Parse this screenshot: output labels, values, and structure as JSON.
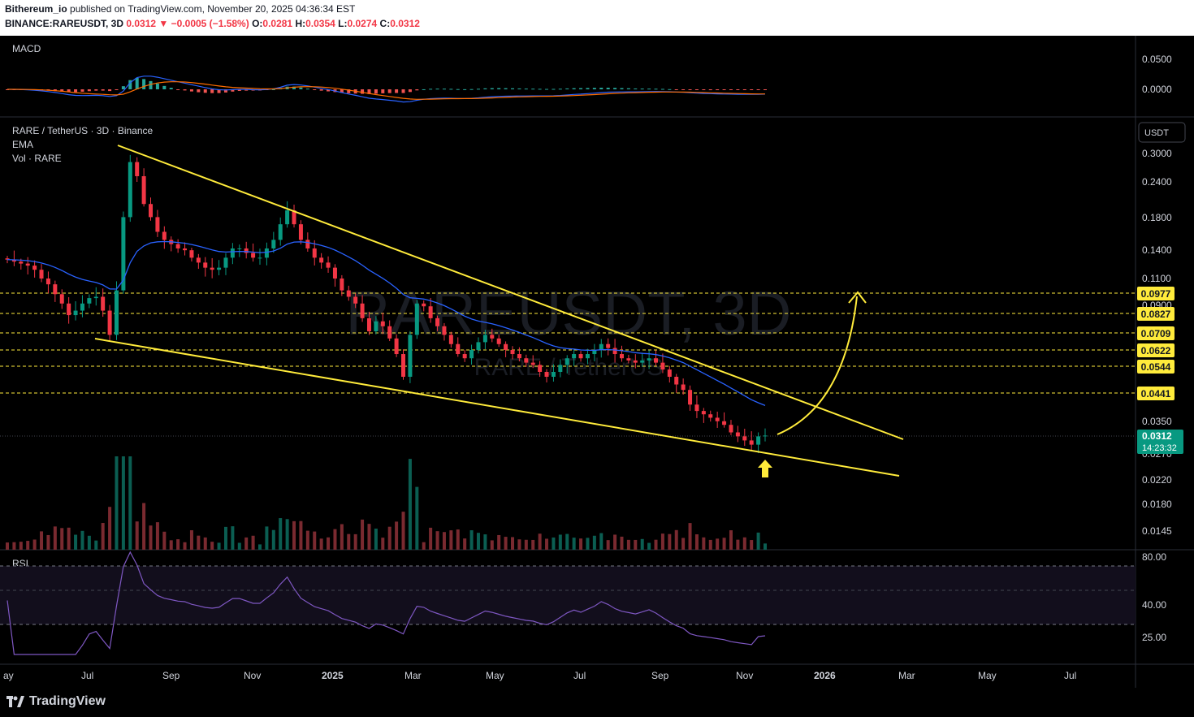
{
  "header": {
    "publisher": "Bithereum_io",
    "published_text": "published on TradingView.com, November 20, 2025 04:36:34 EST",
    "symbol": "BINANCE:RAREUSDT, 3D",
    "last": "0.0312",
    "change": "−0.0005 (−1.58%)",
    "o_label": "O:",
    "o": "0.0281",
    "h_label": "H:",
    "h": "0.0354",
    "l_label": "L:",
    "l": "0.0274",
    "c_label": "C:",
    "c": "0.0312"
  },
  "colors": {
    "up": "#089981",
    "down": "#f23645",
    "trendline": "#ffeb3b",
    "ema": "#2962ff",
    "rsi": "#7e57c2",
    "macd_signal": "#ff6d00"
  },
  "panes": {
    "macd_label": "MACD",
    "price_legend": [
      "RARE / TetherUS · 3D · Binance",
      "EMA",
      "Vol · RARE"
    ],
    "rsi_label": "RSI",
    "currency": "USDT",
    "watermark": "RAREUSDT, 3D",
    "watermark_sub": "RARE / TetherUS"
  },
  "chart_data": {
    "type": "candlestick",
    "symbol": "RAREUSDT",
    "timeframe": "3D",
    "scale": "log",
    "x_axis_labels": [
      "ay",
      "Jul",
      "Sep",
      "Nov",
      "2025",
      "Mar",
      "May",
      "Jul",
      "Sep",
      "Nov",
      "2026",
      "Mar",
      "May",
      "Jul"
    ],
    "price_ticks": [
      "0.3000",
      "0.2400",
      "0.1800",
      "0.1400",
      "0.1100",
      "0.0900",
      "0.0350",
      "0.0270",
      "0.0220",
      "0.0180",
      "0.0145"
    ],
    "support_resistance_levels": [
      "0.0977",
      "0.0827",
      "0.0709",
      "0.0622",
      "0.0544",
      "0.0441"
    ],
    "last_price": "0.0312",
    "countdown": "14:23:32",
    "macd_ticks": [
      "0.0500",
      "0.0000"
    ],
    "rsi_ticks": [
      "80.00",
      "40.00",
      "25.00"
    ],
    "pattern": "falling wedge",
    "closes": [
      0.128,
      0.126,
      0.124,
      0.122,
      0.118,
      0.11,
      0.105,
      0.097,
      0.09,
      0.082,
      0.085,
      0.09,
      0.094,
      0.095,
      0.085,
      0.07,
      0.1,
      0.18,
      0.28,
      0.25,
      0.2,
      0.18,
      0.16,
      0.15,
      0.145,
      0.14,
      0.138,
      0.13,
      0.125,
      0.12,
      0.118,
      0.12,
      0.13,
      0.14,
      0.14,
      0.135,
      0.13,
      0.13,
      0.14,
      0.15,
      0.17,
      0.19,
      0.17,
      0.15,
      0.14,
      0.13,
      0.125,
      0.12,
      0.11,
      0.1,
      0.095,
      0.09,
      0.08,
      0.072,
      0.078,
      0.075,
      0.068,
      0.06,
      0.05,
      0.07,
      0.09,
      0.088,
      0.08,
      0.075,
      0.07,
      0.065,
      0.06,
      0.058,
      0.062,
      0.066,
      0.07,
      0.068,
      0.065,
      0.062,
      0.06,
      0.058,
      0.056,
      0.055,
      0.052,
      0.05,
      0.052,
      0.055,
      0.058,
      0.06,
      0.058,
      0.06,
      0.062,
      0.065,
      0.063,
      0.06,
      0.058,
      0.057,
      0.056,
      0.057,
      0.058,
      0.056,
      0.053,
      0.05,
      0.047,
      0.045,
      0.04,
      0.038,
      0.037,
      0.036,
      0.035,
      0.034,
      0.032,
      0.031,
      0.03,
      0.029,
      0.031,
      0.0312
    ]
  },
  "footer": {
    "brand": "TradingView"
  }
}
